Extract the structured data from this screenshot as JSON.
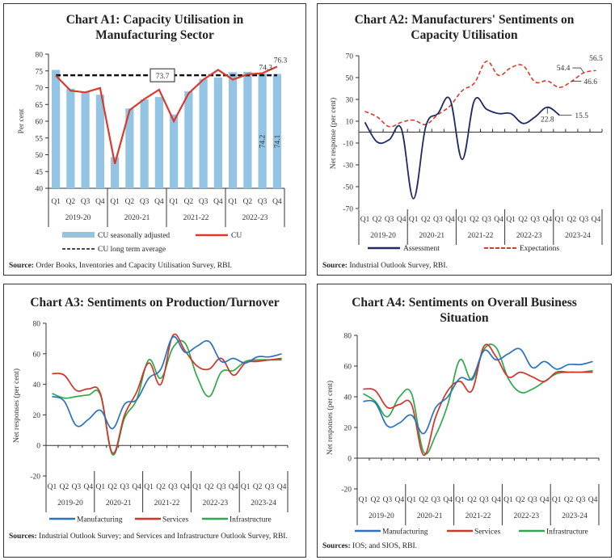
{
  "colors": {
    "bar_blue": "#93C4E4",
    "cu_red": "#D93A2B",
    "avg_black": "#111111",
    "assessment_navy": "#1F2A66",
    "expectations_red": "#D93A2B",
    "manufacturing_blue": "#2A72C0",
    "services_red": "#D2342A",
    "infrastructure_green": "#2DAA4A"
  },
  "chart_data": [
    {
      "id": "A1",
      "type": "bar",
      "title": "Chart A1: Capacity Utilisation in Manufacturing Sector",
      "ylabel": "Per cent",
      "ylim": [
        40,
        80
      ],
      "yticks": [
        40,
        45,
        50,
        55,
        60,
        65,
        70,
        75,
        80
      ],
      "quarters": [
        "Q1",
        "Q2",
        "Q3",
        "Q4",
        "Q1",
        "Q2",
        "Q3",
        "Q4",
        "Q1",
        "Q2",
        "Q3",
        "Q4",
        "Q1",
        "Q2",
        "Q3",
        "Q4"
      ],
      "years": [
        "2019-20",
        "2020-21",
        "2021-22",
        "2022-23"
      ],
      "series": [
        {
          "name": "CU seasonally adjusted",
          "kind": "bar",
          "values": [
            75.3,
            69.7,
            68.8,
            67.9,
            49.3,
            63.8,
            66.5,
            67.2,
            62.0,
            68.9,
            72.6,
            73.0,
            74.6,
            74.7,
            74.2,
            74.1
          ]
        },
        {
          "name": "CU",
          "kind": "line",
          "values": [
            73.6,
            69.1,
            68.6,
            69.9,
            47.3,
            63.3,
            66.6,
            69.4,
            60.0,
            68.3,
            72.4,
            75.3,
            72.4,
            74.0,
            74.3,
            76.3
          ]
        },
        {
          "name": "CU long term average",
          "kind": "dashed",
          "value": 73.7
        }
      ],
      "annotations": [
        "73.7",
        "74.3",
        "76.3",
        "74.2",
        "74.1"
      ],
      "legend": [
        "CU seasonally adjusted",
        "CU",
        "CU long term average"
      ],
      "legend_position": "bottom",
      "source_label": "Source:",
      "source_text": "Order Books, Inventories and Capacity Utilisation Survey, RBI."
    },
    {
      "id": "A2",
      "type": "line",
      "title": "Chart A2: Manufacturers' Sentiments on Capacity Utilisation",
      "ylabel": "Net response (per cent)",
      "ylim": [
        -70,
        70
      ],
      "yticks": [
        -70,
        -50,
        -30,
        -10,
        10,
        30,
        50,
        70
      ],
      "quarters": [
        "Q1",
        "Q2",
        "Q3",
        "Q4",
        "Q1",
        "Q2",
        "Q3",
        "Q4",
        "Q1",
        "Q2",
        "Q3",
        "Q4",
        "Q1",
        "Q2",
        "Q3",
        "Q4",
        "Q1",
        "Q2",
        "Q3",
        "Q4"
      ],
      "years": [
        "2019-20",
        "2020-21",
        "2021-22",
        "2022-23",
        "2023-24"
      ],
      "series": [
        {
          "name": "Assessment",
          "style": "solid",
          "values": [
            9,
            -9,
            -7,
            3,
            -61,
            5,
            17,
            30,
            -25,
            29,
            21,
            17,
            17,
            8,
            14,
            22.8,
            15.5,
            null,
            null,
            null
          ]
        },
        {
          "name": "Expectations",
          "style": "dashed",
          "values": [
            19,
            14,
            5,
            9,
            11,
            7,
            16,
            24,
            38,
            45,
            65,
            52,
            59,
            61,
            46,
            47,
            41,
            46.6,
            54.4,
            56.5
          ]
        }
      ],
      "annotations": [
        "22.8",
        "15.5",
        "46.6",
        "54.4",
        "56.5"
      ],
      "legend": [
        "Assessment",
        "Expectations"
      ],
      "legend_position": "bottom",
      "source_label": "Source:",
      "source_text": "Industrial Outlook Survey, RBI."
    },
    {
      "id": "A3",
      "type": "line",
      "title": "Chart A3: Sentiments on Production/Turnover",
      "ylabel": "Net responses (per cent)",
      "ylim": [
        -20,
        80
      ],
      "yticks": [
        -20,
        0,
        20,
        40,
        60,
        80
      ],
      "quarters": [
        "Q1",
        "Q2",
        "Q3",
        "Q4",
        "Q1",
        "Q2",
        "Q3",
        "Q4",
        "Q1",
        "Q2",
        "Q3",
        "Q4",
        "Q1",
        "Q2",
        "Q3",
        "Q4",
        "Q1",
        "Q2",
        "Q3",
        "Q4"
      ],
      "years": [
        "2019-20",
        "2020-21",
        "2021-22",
        "2022-23",
        "2023-24"
      ],
      "series": [
        {
          "name": "Manufacturing",
          "values": [
            32,
            29,
            13,
            17,
            23,
            11,
            27,
            30,
            44,
            50,
            71,
            61,
            65,
            68,
            55,
            57,
            54,
            58,
            58,
            60
          ]
        },
        {
          "name": "Services",
          "values": [
            47,
            46,
            36,
            37,
            34,
            -5,
            20,
            35,
            54,
            40,
            72,
            62,
            52,
            50,
            57,
            46,
            54,
            55,
            56,
            57
          ]
        },
        {
          "name": "Infrastructure",
          "values": [
            34,
            31,
            32,
            33,
            33,
            -6,
            18,
            30,
            56,
            44,
            64,
            67,
            45,
            32,
            48,
            49,
            55,
            56,
            56,
            56
          ]
        }
      ],
      "legend": [
        "Manufacturing",
        "Services",
        "Infrastructure"
      ],
      "legend_position": "bottom",
      "source_label": "Sources:",
      "source_text": "Industrial Outlook Survey; and Services and Infrastructure Outlook Survey, RBI."
    },
    {
      "id": "A4",
      "type": "line",
      "title": "Chart A4: Sentiments on Overall Business Situation",
      "ylabel": "Net responses (per cent)",
      "ylim": [
        -20,
        80
      ],
      "yticks": [
        -20,
        0,
        20,
        40,
        60,
        80
      ],
      "quarters": [
        "Q1",
        "Q2",
        "Q3",
        "Q4",
        "Q1",
        "Q2",
        "Q3",
        "Q4",
        "Q1",
        "Q2",
        "Q3",
        "Q4",
        "Q1",
        "Q2",
        "Q3",
        "Q4",
        "Q1",
        "Q2",
        "Q3",
        "Q4"
      ],
      "years": [
        "2019-20",
        "2020-21",
        "2021-22",
        "2022-23",
        "2023-24"
      ],
      "series": [
        {
          "name": "Manufacturing",
          "values": [
            37,
            36,
            21,
            23,
            28,
            16,
            33,
            40,
            52,
            52,
            70,
            64,
            68,
            71,
            59,
            63,
            58,
            61,
            61,
            63
          ]
        },
        {
          "name": "Services",
          "values": [
            45,
            44,
            33,
            35,
            35,
            2,
            27,
            44,
            50,
            44,
            73,
            66,
            53,
            56,
            53,
            50,
            56,
            56,
            56,
            56
          ]
        },
        {
          "name": "Infrastructure",
          "values": [
            42,
            37,
            27,
            40,
            42,
            4,
            15,
            35,
            64,
            51,
            71,
            72,
            52,
            43,
            45,
            50,
            55,
            56,
            56,
            57
          ]
        }
      ],
      "legend": [
        "Manufacturing",
        "Services",
        "Infrastructure"
      ],
      "legend_position": "bottom",
      "source_label": "Sources:",
      "source_text": "IOS; and SIOS, RBI."
    }
  ],
  "titles": {
    "a1_line1": "Chart A1: Capacity Utilisation in",
    "a1_line2": "Manufacturing Sector",
    "a2_line1": "Chart A2: Manufacturers' Sentiments on",
    "a2_line2": "Capacity Utilisation",
    "a3_line1": "Chart A3: Sentiments on Production/Turnover",
    "a4_line1": "Chart A4: Sentiments on Overall Business",
    "a4_line2": "Situation"
  },
  "sources": {
    "a1_label": "Source:",
    "a1_text": " Order Books, Inventories and Capacity Utilisation Survey, RBI.",
    "a2_label": "Source:",
    "a2_text": " Industrial Outlook Survey, RBI.",
    "a3_label": "Sources:",
    "a3_text": " Industrial Outlook Survey; and Services and Infrastructure Outlook Survey, RBI.",
    "a4_label": "Sources:",
    "a4_text": " IOS; and SIOS, RBI."
  }
}
